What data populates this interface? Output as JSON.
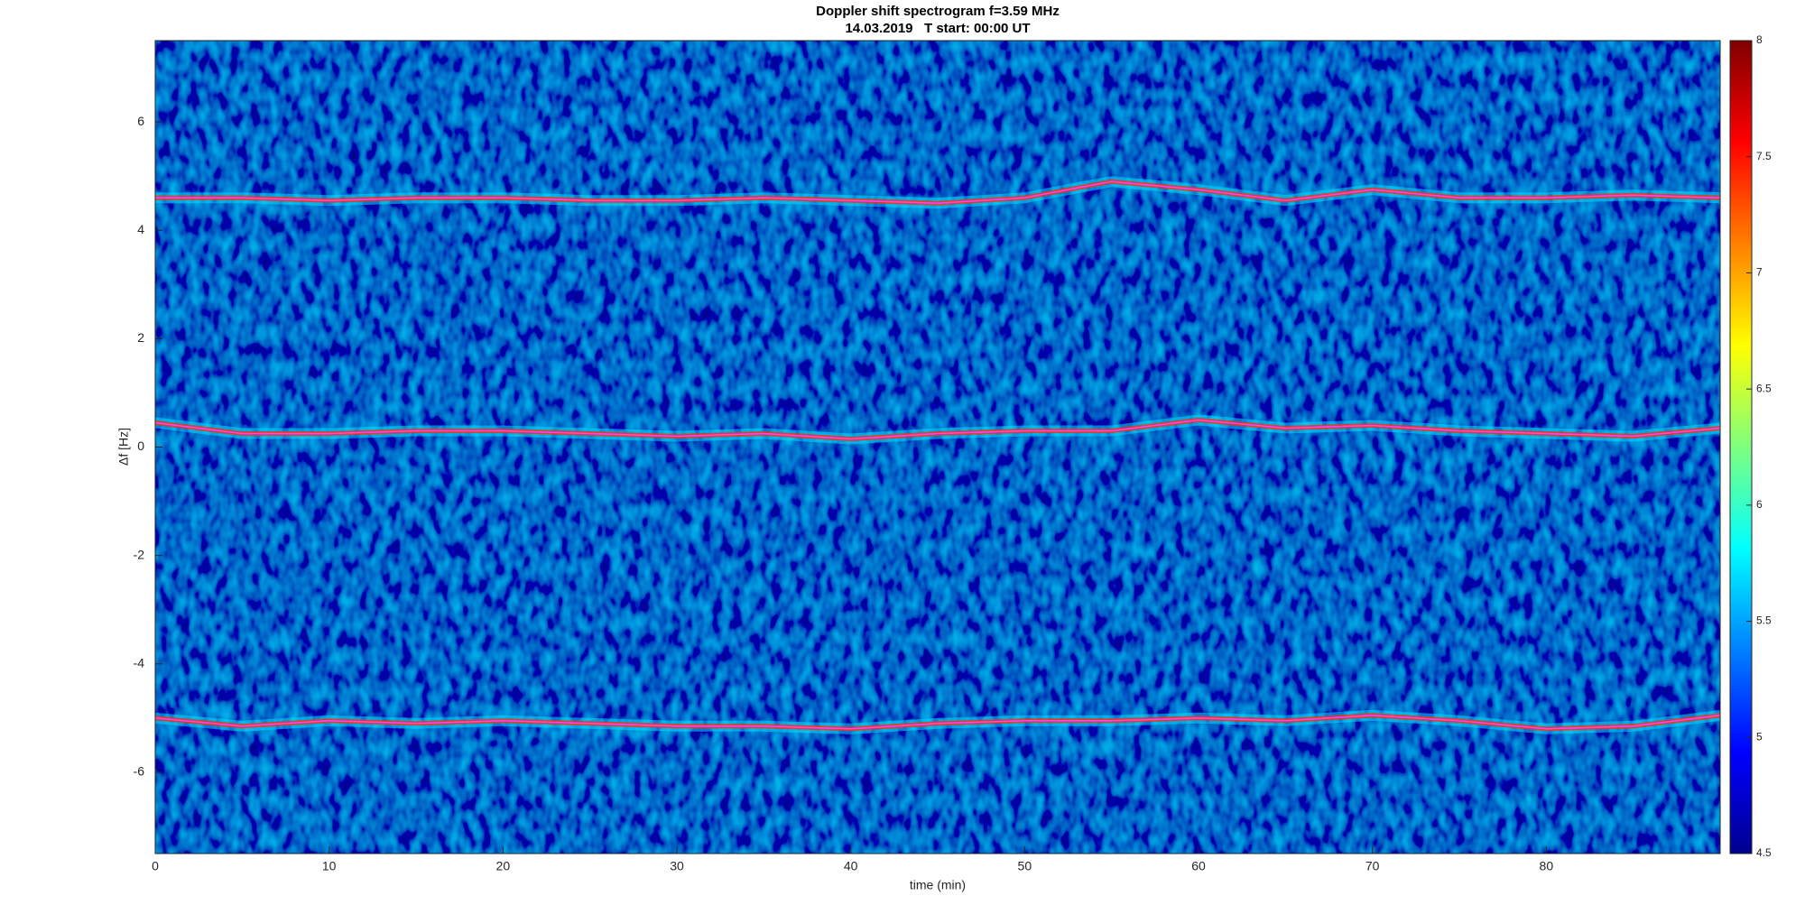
{
  "chart_data": {
    "type": "line",
    "title": "Doppler shift spectrogram f=3.59 MHz",
    "subtitle": "14.03.2019   T start: 00:00 UT",
    "xlabel": "time (min)",
    "ylabel": "Δf [Hz]",
    "x": [
      0,
      5,
      10,
      15,
      20,
      25,
      30,
      35,
      40,
      45,
      50,
      55,
      60,
      65,
      70,
      75,
      80,
      85,
      90
    ],
    "series": [
      {
        "color": "#ff40ff",
        "values": [
          4.6,
          4.6,
          4.55,
          4.6,
          4.6,
          4.55,
          4.55,
          4.6,
          4.55,
          4.5,
          4.6,
          4.9,
          4.75,
          4.55,
          4.75,
          4.6,
          4.6,
          4.65,
          4.6
        ]
      },
      {
        "color": "#ff40ff",
        "values": [
          0.45,
          0.25,
          0.25,
          0.3,
          0.3,
          0.25,
          0.2,
          0.25,
          0.15,
          0.25,
          0.3,
          0.3,
          0.5,
          0.35,
          0.4,
          0.3,
          0.25,
          0.2,
          0.35
        ]
      },
      {
        "color": "#ff40ff",
        "values": [
          -5.0,
          -5.15,
          -5.05,
          -5.1,
          -5.05,
          -5.1,
          -5.15,
          -5.15,
          -5.2,
          -5.1,
          -5.05,
          -5.05,
          -5.0,
          -5.05,
          -4.95,
          -5.05,
          -5.2,
          -5.15,
          -4.95
        ]
      }
    ],
    "xlim": [
      0,
      90
    ],
    "xticks": [
      0,
      10,
      20,
      30,
      40,
      50,
      60,
      70,
      80
    ],
    "ylim": [
      -7.5,
      7.5
    ],
    "yticks": [
      -6,
      -4,
      -2,
      0,
      2,
      4,
      6
    ],
    "colorbar": {
      "clim": [
        4.5,
        8
      ],
      "ticks": [
        4.5,
        5,
        5.5,
        6,
        6.5,
        7,
        7.5,
        8
      ]
    }
  }
}
